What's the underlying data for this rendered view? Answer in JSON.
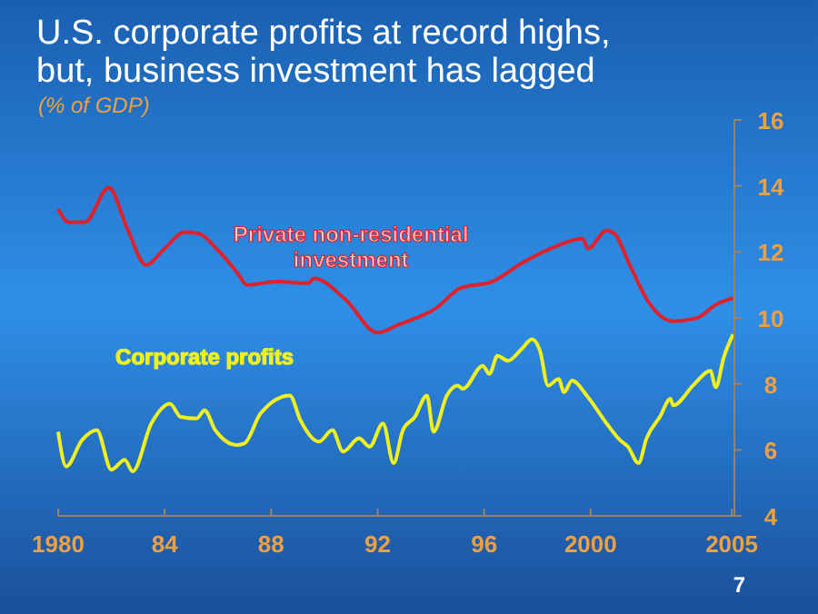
{
  "chart_data": {
    "type": "line",
    "title": "U.S. corporate profits at record highs,\nbut, business investment has lagged",
    "subtitle": "(% of GDP)",
    "xlim": [
      1980,
      2005.4
    ],
    "xticks": [
      {
        "value": 1980,
        "label": "1980"
      },
      {
        "value": 1984,
        "label": "84"
      },
      {
        "value": 1988,
        "label": "88"
      },
      {
        "value": 1992,
        "label": "92"
      },
      {
        "value": 1996,
        "label": "96"
      },
      {
        "value": 2000,
        "label": "2000"
      },
      {
        "value": 2005.3,
        "label": "2005"
      }
    ],
    "ylim": [
      4,
      16
    ],
    "yticks": [
      4,
      6,
      8,
      10,
      12,
      14,
      16
    ],
    "grid": false,
    "legend": false,
    "series": [
      {
        "name": "Private non-residential\ninvestment",
        "color": "#e0202a",
        "x": [
          1980,
          1980.4,
          1981,
          1981.9,
          1982.6,
          1983.3,
          1984,
          1984.75,
          1985.3,
          1986,
          1986.7,
          1987.1,
          1988.2,
          1989.4,
          1989.6,
          1990.8,
          1992,
          1992.8,
          1994.2,
          1995.1,
          1996.3,
          1997.4,
          1998.5,
          1999.7,
          1999.9,
          2000.6,
          2000.9,
          2001.5,
          2002.2,
          2003.1,
          2004,
          2004.7,
          2005.35
        ],
        "values": [
          13.3,
          12.9,
          12.9,
          13.95,
          12.7,
          11.6,
          12.1,
          12.6,
          12.55,
          12.05,
          11.4,
          11.0,
          11.1,
          11.05,
          11.2,
          10.55,
          9.55,
          9.8,
          10.3,
          10.9,
          11.1,
          11.65,
          12.1,
          12.4,
          12.1,
          12.65,
          12.55,
          11.55,
          10.45,
          9.9,
          10.0,
          10.4,
          10.6
        ]
      },
      {
        "name": "Corporate profits",
        "color": "#f0f020",
        "x": [
          1980,
          1980.3,
          1980.9,
          1981.45,
          1982,
          1982.5,
          1982.8,
          1983.5,
          1984.2,
          1984.6,
          1985.2,
          1985.5,
          1985.9,
          1986.7,
          1987,
          1987.6,
          1988.7,
          1989.1,
          1989.8,
          1990.3,
          1990.7,
          1991.3,
          1991.7,
          1992.2,
          1992.6,
          1992.95,
          1993.4,
          1993.85,
          1994.1,
          1994.6,
          1995,
          1995.2,
          1995.95,
          1996.2,
          1996.5,
          1996.9,
          1997.4,
          1997.8,
          1998.1,
          1998.4,
          1998.8,
          1999,
          1999.3,
          1999.9,
          2000.6,
          2001.1,
          2001.4,
          2001.8,
          2002.1,
          2002.6,
          2003,
          2003.1,
          2003.9,
          2004.5,
          2004.7,
          2005,
          2005.35
        ],
        "values": [
          6.55,
          5.5,
          6.3,
          6.6,
          5.4,
          5.7,
          5.35,
          6.8,
          7.4,
          7.0,
          6.95,
          7.2,
          6.6,
          6.15,
          6.2,
          7.1,
          7.65,
          6.9,
          6.25,
          6.6,
          5.95,
          6.35,
          6.1,
          6.8,
          5.6,
          6.6,
          7.0,
          7.65,
          6.55,
          7.65,
          7.95,
          7.85,
          8.55,
          8.3,
          8.85,
          8.7,
          9.05,
          9.35,
          9.0,
          7.95,
          8.15,
          7.75,
          8.1,
          7.6,
          6.8,
          6.3,
          6.1,
          5.6,
          6.35,
          7.0,
          7.55,
          7.35,
          8.0,
          8.4,
          7.9,
          8.8,
          9.5
        ]
      }
    ],
    "annotations": [
      "7"
    ]
  }
}
